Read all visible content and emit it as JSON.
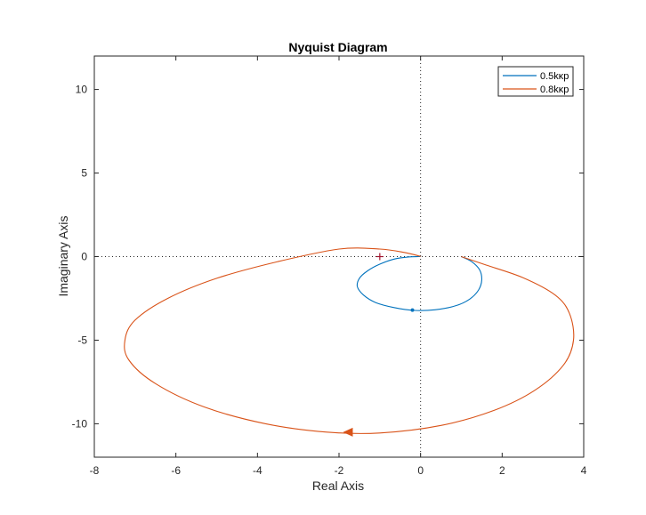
{
  "chart_data": {
    "type": "line",
    "title": "Nyquist Diagram",
    "xlabel": "Real Axis",
    "ylabel": "Imaginary Axis",
    "xlim": [
      -8,
      4
    ],
    "ylim": [
      -12,
      12
    ],
    "xticks": [
      -8,
      -6,
      -4,
      -2,
      0,
      2,
      4
    ],
    "yticks": [
      -10,
      -5,
      0,
      5,
      10
    ],
    "x_tick_labels": [
      "-8",
      "-6",
      "-4",
      "-2",
      "0",
      "2",
      "4"
    ],
    "y_tick_labels": [
      "-10",
      "-5",
      "0",
      "5",
      "10"
    ],
    "grid": false,
    "reference_lines": "dotted lines at x = 0 and y = 0",
    "legend_position": "top-right",
    "critical_point": [
      -1,
      0
    ],
    "series": [
      {
        "name": "0.5kκp",
        "color": "#0072BD",
        "direction_marker": [
          -0.2,
          -3.2
        ],
        "points": [
          [
            1.0,
            0.0
          ],
          [
            1.25,
            -0.3
          ],
          [
            1.45,
            -0.8
          ],
          [
            1.5,
            -1.4
          ],
          [
            1.42,
            -2.0
          ],
          [
            1.2,
            -2.55
          ],
          [
            0.85,
            -2.95
          ],
          [
            0.35,
            -3.18
          ],
          [
            -0.15,
            -3.22
          ],
          [
            -0.65,
            -3.05
          ],
          [
            -1.1,
            -2.75
          ],
          [
            -1.4,
            -2.3
          ],
          [
            -1.55,
            -1.8
          ],
          [
            -1.5,
            -1.3
          ],
          [
            -1.3,
            -0.85
          ],
          [
            -1.0,
            -0.45
          ],
          [
            -0.65,
            -0.15
          ],
          [
            -0.3,
            -0.02
          ],
          [
            -0.05,
            0.0
          ],
          [
            0.0,
            0.0
          ]
        ]
      },
      {
        "name": "0.8kκp",
        "color": "#D95319",
        "direction_marker": [
          -1.75,
          -10.5
        ],
        "points": [
          [
            1.0,
            0.0
          ],
          [
            1.6,
            -0.5
          ],
          [
            2.5,
            -1.25
          ],
          [
            3.3,
            -2.3
          ],
          [
            3.65,
            -3.4
          ],
          [
            3.75,
            -5.0
          ],
          [
            3.5,
            -6.5
          ],
          [
            2.8,
            -8.0
          ],
          [
            1.8,
            -9.2
          ],
          [
            0.5,
            -10.1
          ],
          [
            -1.0,
            -10.55
          ],
          [
            -2.3,
            -10.5
          ],
          [
            -3.8,
            -10.0
          ],
          [
            -5.3,
            -9.0
          ],
          [
            -6.5,
            -7.6
          ],
          [
            -7.15,
            -6.2
          ],
          [
            -7.25,
            -5.0
          ],
          [
            -7.0,
            -3.8
          ],
          [
            -6.2,
            -2.5
          ],
          [
            -5.0,
            -1.3
          ],
          [
            -3.5,
            -0.3
          ],
          [
            -2.0,
            0.45
          ],
          [
            -1.0,
            0.45
          ],
          [
            -0.4,
            0.25
          ],
          [
            -0.05,
            0.05
          ],
          [
            0.0,
            0.0
          ]
        ]
      }
    ]
  }
}
